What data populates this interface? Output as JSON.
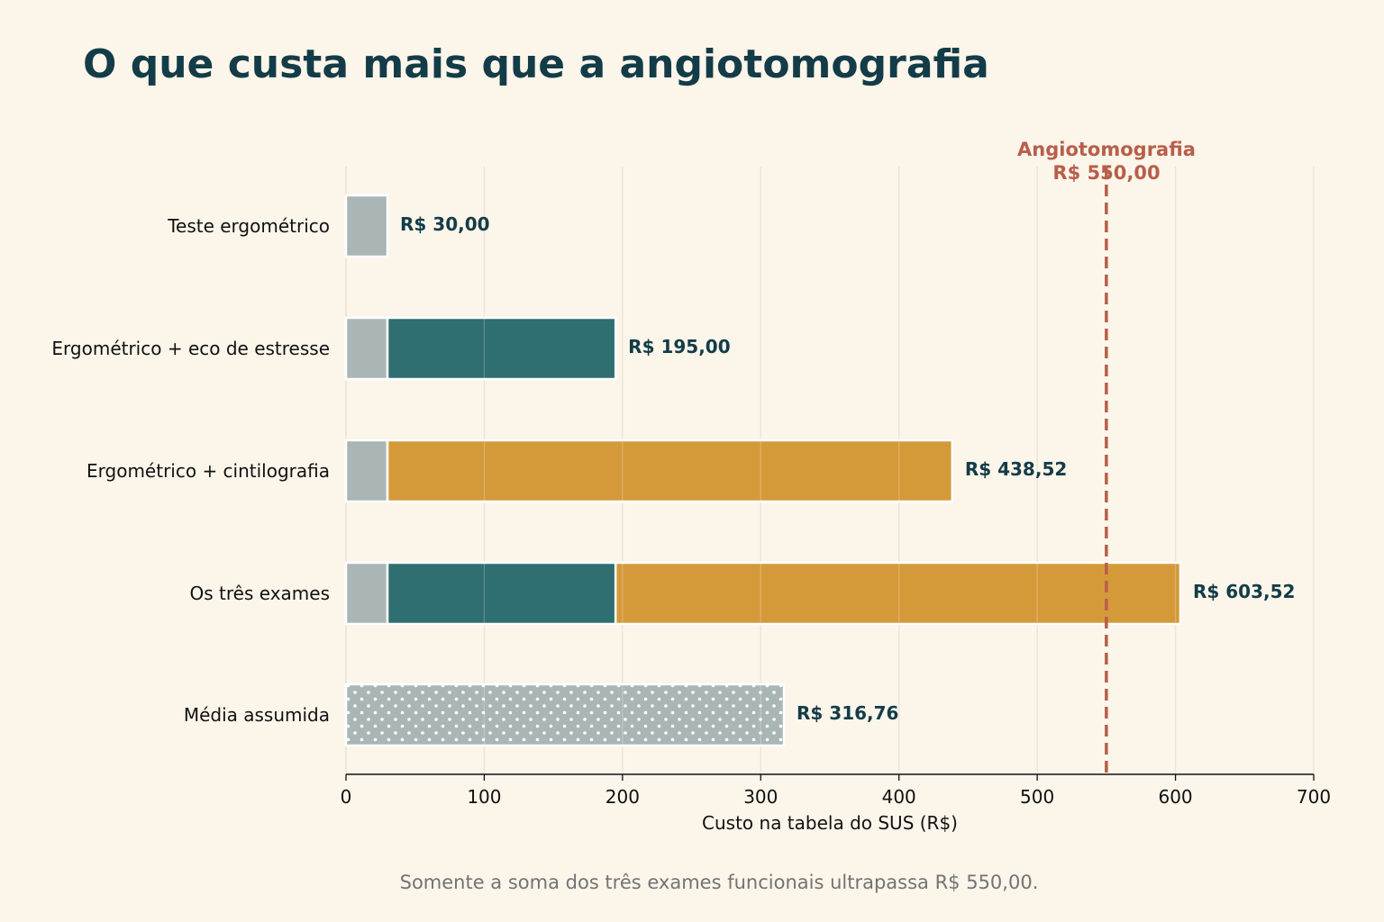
{
  "chart_data": {
    "type": "bar",
    "orientation": "horizontal",
    "stacked": true,
    "title": "O que custa mais que a angiotomografia",
    "xlabel": "Custo na tabela do SUS (R$)",
    "xlim": [
      0,
      700
    ],
    "xticks": [
      "0",
      "100",
      "200",
      "300",
      "400",
      "500",
      "600",
      "700"
    ],
    "grid": true,
    "categories": [
      "Teste ergométrico",
      "Ergométrico + eco de estresse",
      "Ergométrico + cintilografia",
      "Os três exames",
      "Média assumida"
    ],
    "series": [
      {
        "values": [
          30,
          30,
          30,
          30,
          null
        ],
        "color": "#a9b6b5"
      },
      {
        "values": [
          null,
          165,
          null,
          165,
          null
        ],
        "color": "#2f6e71"
      },
      {
        "values": [
          null,
          null,
          408.52,
          408.52,
          null
        ],
        "color": "#d49a3a"
      },
      {
        "values": [
          null,
          null,
          null,
          null,
          316.76
        ],
        "color": "#a9b6b5",
        "pattern": "dots"
      }
    ],
    "totals": [
      30,
      195,
      438.52,
      603.52,
      316.76
    ],
    "value_labels": [
      "R$ 30,00",
      "R$ 195,00",
      "R$ 438,52",
      "R$ 603,52",
      "R$ 316,76"
    ],
    "reference_line": {
      "value": 550,
      "label_line1": "Angiotomografia",
      "label_line2": "R$ 550,00",
      "color": "#b85e4a",
      "style": "dashed"
    },
    "footnote": "Somente a soma dos três exames funcionais ultrapassa R$ 550,00."
  }
}
